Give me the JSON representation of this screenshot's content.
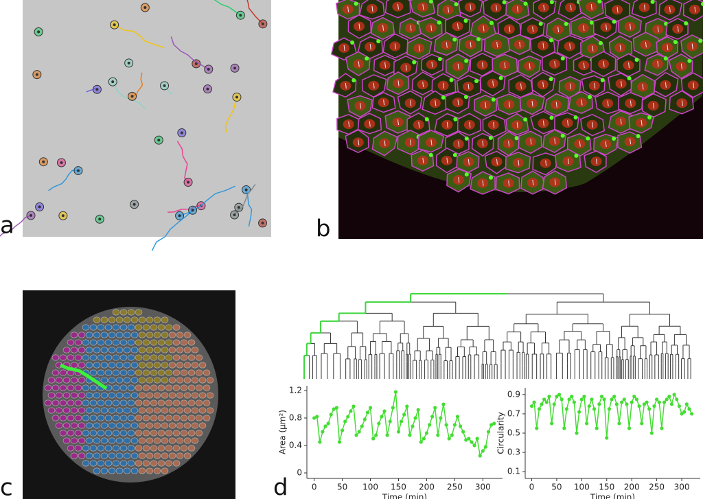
{
  "panel_labels": [
    "a",
    "b",
    "c",
    "d"
  ],
  "chart_data": [
    {
      "type": "line",
      "xlabel": "Time (min)",
      "ylabel": "Area (µm²)",
      "x": [
        0,
        5,
        10,
        15,
        20,
        25,
        30,
        35,
        40,
        45,
        50,
        55,
        60,
        65,
        70,
        75,
        80,
        85,
        90,
        95,
        100,
        105,
        110,
        115,
        120,
        125,
        130,
        135,
        140,
        145,
        150,
        155,
        160,
        165,
        170,
        175,
        180,
        185,
        190,
        195,
        200,
        205,
        210,
        215,
        220,
        225,
        230,
        235,
        240,
        245,
        250,
        255,
        260,
        265,
        270,
        275,
        280,
        285,
        290,
        295,
        300,
        305,
        310,
        315,
        320
      ],
      "series": [
        {
          "color": "#44dd33",
          "values": [
            0.8,
            0.82,
            0.45,
            0.6,
            0.68,
            0.72,
            0.85,
            0.93,
            0.95,
            0.45,
            0.62,
            0.75,
            0.82,
            0.9,
            0.97,
            0.55,
            0.6,
            0.68,
            0.78,
            0.88,
            0.95,
            0.5,
            0.55,
            0.72,
            0.82,
            0.9,
            0.55,
            0.75,
            0.95,
            1.18,
            0.6,
            0.75,
            0.85,
            0.97,
            0.55,
            0.68,
            0.8,
            0.92,
            0.45,
            0.5,
            0.58,
            0.7,
            0.82,
            0.95,
            0.55,
            0.8,
            1.0,
            0.7,
            0.5,
            0.55,
            0.7,
            0.82,
            0.68,
            0.6,
            0.48,
            0.5,
            0.45,
            0.4,
            0.5,
            0.25,
            0.32,
            0.38,
            0.6,
            0.7,
            0.72
          ]
        }
      ],
      "xlim": [
        -13,
        335
      ],
      "ylim": [
        -0.08,
        1.27
      ],
      "xticks": [
        0,
        50,
        100,
        150,
        200,
        250,
        300
      ],
      "yticks": [
        0,
        0.4,
        0.8,
        {
          "value": 1.2,
          "label": "1.2"
        }
      ]
    },
    {
      "type": "line",
      "xlabel": "Time (min)",
      "ylabel": "Circularity",
      "x": [
        0,
        5,
        10,
        15,
        20,
        25,
        30,
        35,
        40,
        45,
        50,
        55,
        60,
        65,
        70,
        75,
        80,
        85,
        90,
        95,
        100,
        105,
        110,
        115,
        120,
        125,
        130,
        135,
        140,
        145,
        150,
        155,
        160,
        165,
        170,
        175,
        180,
        185,
        190,
        195,
        200,
        205,
        210,
        215,
        220,
        225,
        230,
        235,
        240,
        245,
        250,
        255,
        260,
        265,
        270,
        275,
        280,
        285,
        290,
        295,
        300,
        305,
        310,
        315,
        320
      ],
      "series": [
        {
          "color": "#44dd33",
          "values": [
            0.78,
            0.82,
            0.55,
            0.75,
            0.8,
            0.85,
            0.82,
            0.88,
            0.6,
            0.8,
            0.88,
            0.9,
            0.85,
            0.55,
            0.75,
            0.85,
            0.88,
            0.82,
            0.5,
            0.72,
            0.85,
            0.88,
            0.6,
            0.78,
            0.85,
            0.75,
            0.55,
            0.8,
            0.88,
            0.85,
            0.45,
            0.75,
            0.85,
            0.88,
            0.8,
            0.6,
            0.82,
            0.85,
            0.8,
            0.55,
            0.82,
            0.88,
            0.85,
            0.78,
            0.6,
            0.8,
            0.82,
            0.75,
            0.5,
            0.78,
            0.85,
            0.82,
            0.55,
            0.82,
            0.85,
            0.88,
            0.8,
            0.9,
            0.85,
            0.78,
            0.7,
            0.72,
            0.8,
            0.75,
            0.7
          ]
        }
      ],
      "xlim": [
        -13,
        337
      ],
      "ylim": [
        0.03,
        0.97
      ],
      "xticks": [
        0,
        50,
        100,
        150,
        200,
        250,
        300
      ],
      "yticks": [
        0.1,
        0.3,
        0.5,
        0.7,
        0.9
      ]
    }
  ]
}
